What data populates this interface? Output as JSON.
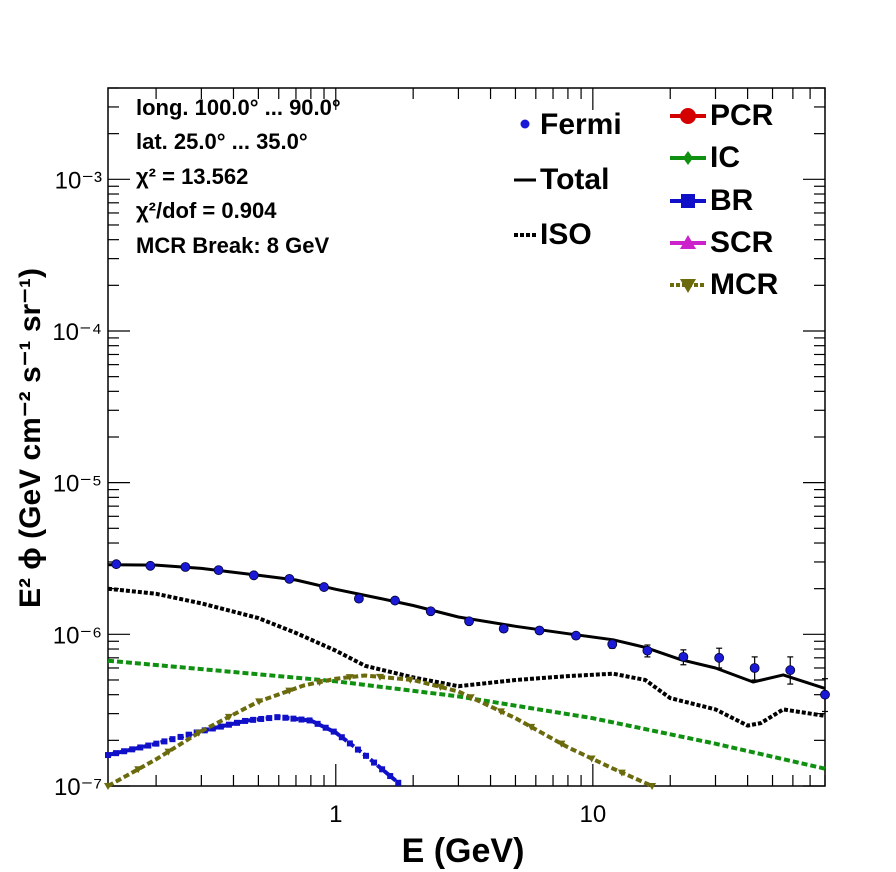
{
  "chart_data": {
    "type": "scatter",
    "scale": {
      "x": "log",
      "y": "log"
    },
    "xlim": [
      0.13,
      80
    ],
    "ylim": [
      1e-07,
      0.004
    ],
    "xlabel": "E (GeV)",
    "ylabel": "E² ϕ (GeV cm⁻² s⁻¹ sr⁻¹)",
    "xticks": [
      {
        "value": 1,
        "label": "1"
      },
      {
        "value": 10,
        "label": "10"
      }
    ],
    "yticks": [
      {
        "value": 1e-07,
        "label": "10⁻⁷"
      },
      {
        "value": 1e-06,
        "label": "10⁻⁶"
      },
      {
        "value": 1e-05,
        "label": "10⁻⁵"
      },
      {
        "value": 0.0001,
        "label": "10⁻⁴"
      },
      {
        "value": 0.001,
        "label": "10⁻³"
      }
    ],
    "annotations": [
      "long. 100.0° ... 90.0°",
      "lat. 25.0° ... 35.0°",
      "χ² = 13.562",
      "χ²/dof = 0.904",
      "MCR Break:  8 GeV"
    ],
    "legend": {
      "left": [
        "Fermi",
        "Total",
        "ISO"
      ],
      "right": [
        "PCR",
        "IC",
        "BR",
        "SCR",
        "MCR"
      ]
    },
    "series": [
      {
        "name": "Fermi",
        "kind": "points",
        "color": "#1a1ad6",
        "x": [
          0.14,
          0.19,
          0.26,
          0.35,
          0.48,
          0.66,
          0.9,
          1.23,
          1.7,
          2.34,
          3.3,
          4.5,
          6.2,
          8.6,
          11.9,
          16.3,
          22.5,
          31,
          42.6,
          58.6,
          80
        ],
        "y": [
          2.9e-06,
          2.83e-06,
          2.78e-06,
          2.65e-06,
          2.45e-06,
          2.32e-06,
          2.05e-06,
          1.72e-06,
          1.67e-06,
          1.42e-06,
          1.22e-06,
          1.09e-06,
          1.06e-06,
          9.8e-07,
          8.6e-07,
          7.8e-07,
          7.1e-07,
          7e-07,
          6e-07,
          5.8e-07,
          4e-07
        ],
        "err_hi": [
          3e-08,
          3e-08,
          3e-08,
          3e-08,
          3e-08,
          3e-08,
          3e-08,
          3e-08,
          3e-08,
          3e-08,
          3e-08,
          3e-08,
          3e-08,
          4e-08,
          5e-08,
          7e-08,
          8e-08,
          1.1e-07,
          1.1e-07,
          1.3e-07,
          1.1e-07
        ],
        "err_lo": [
          3e-08,
          3e-08,
          3e-08,
          3e-08,
          3e-08,
          3e-08,
          3e-08,
          3e-08,
          3e-08,
          3e-08,
          3e-08,
          3e-08,
          3e-08,
          4e-08,
          5e-08,
          7e-08,
          8e-08,
          1e-07,
          1e-07,
          1.1e-07,
          9e-08
        ]
      },
      {
        "name": "Total",
        "kind": "line",
        "color": "#000000",
        "x": [
          0.13,
          0.2,
          0.3,
          0.5,
          0.7,
          1.0,
          1.5,
          2.0,
          3.0,
          5.0,
          8.0,
          12.0,
          16.0,
          22.0,
          30.0,
          42.0,
          55.0,
          80.0
        ],
        "y": [
          2.88e-06,
          2.86e-06,
          2.72e-06,
          2.45e-06,
          2.28e-06,
          1.98e-06,
          1.72e-06,
          1.55e-06,
          1.3e-06,
          1.13e-06,
          1.01e-06,
          9.2e-07,
          8.2e-07,
          6.8e-07,
          6e-07,
          4.85e-07,
          5.4e-07,
          4.4e-07
        ]
      },
      {
        "name": "ISO",
        "kind": "dotted",
        "color": "#000000",
        "x": [
          0.13,
          0.2,
          0.3,
          0.5,
          0.7,
          1.0,
          1.3,
          2.0,
          3.0,
          5.0,
          8.0,
          12.0,
          16.0,
          20.0,
          30.0,
          40.0,
          45.0,
          55.0,
          80.0
        ],
        "y": [
          2e-06,
          1.85e-06,
          1.6e-06,
          1.28e-06,
          1.02e-06,
          7.8e-07,
          6.2e-07,
          5.2e-07,
          4.55e-07,
          5e-07,
          5.3e-07,
          5.5e-07,
          5e-07,
          3.8e-07,
          3.2e-07,
          2.5e-07,
          2.6e-07,
          3.2e-07,
          2.9e-07
        ]
      },
      {
        "name": "IC",
        "kind": "dashed",
        "color": "#109010",
        "x": [
          0.13,
          0.3,
          1.0,
          3.0,
          10.0,
          30.0,
          80.0
        ],
        "y": [
          6.7e-07,
          5.9e-07,
          4.9e-07,
          3.9e-07,
          2.8e-07,
          1.9e-07,
          1.3e-07
        ]
      },
      {
        "name": "BR",
        "kind": "dashed",
        "color": "#1010c8",
        "x": [
          0.13,
          0.2,
          0.3,
          0.45,
          0.6,
          0.8,
          1.0,
          1.3,
          1.75
        ],
        "y": [
          1.6e-07,
          1.9e-07,
          2.3e-07,
          2.7e-07,
          2.85e-07,
          2.7e-07,
          2.25e-07,
          1.6e-07,
          1.05e-07
        ]
      },
      {
        "name": "MCR",
        "kind": "dashed",
        "color": "#6b6b0e",
        "x": [
          0.13,
          0.2,
          0.3,
          0.5,
          0.75,
          1.0,
          1.3,
          2.0,
          3.0,
          5.0,
          8.0,
          12.0,
          17.0
        ],
        "y": [
          1e-07,
          1.5e-07,
          2.3e-07,
          3.6e-07,
          4.6e-07,
          5.1e-07,
          5.35e-07,
          5e-07,
          4.2e-07,
          2.8e-07,
          1.8e-07,
          1.3e-07,
          1e-07
        ]
      }
    ],
    "marker_colors": {
      "PCR": "#d40000",
      "IC": "#109010",
      "BR": "#1010c8",
      "SCR": "#cc22cc",
      "MCR": "#6b6b0e"
    }
  }
}
